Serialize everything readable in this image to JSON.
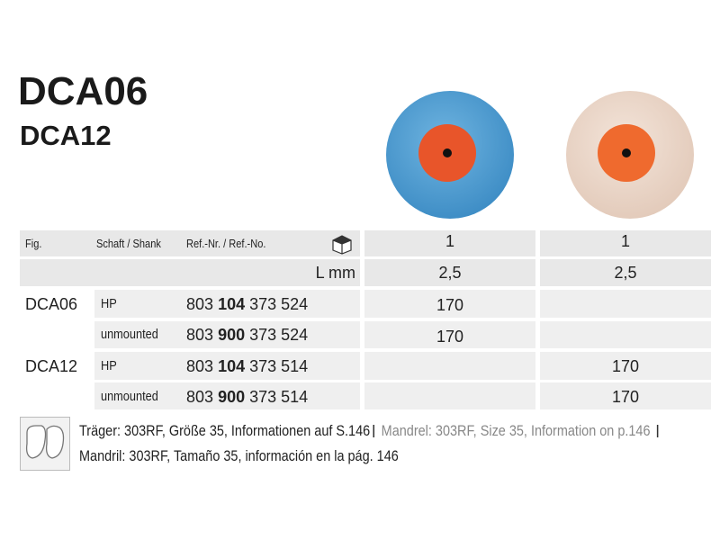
{
  "header": {
    "title": "DCA06",
    "subtitle": "DCA12"
  },
  "table": {
    "columns": [
      "Fig.",
      "Schaft / Shank",
      "Ref.-Nr. / Ref.-No."
    ],
    "figures": [
      "1",
      "1"
    ],
    "unit_label": "L mm",
    "lengths": [
      "2,5",
      "2,5"
    ],
    "rows": [
      {
        "fig": "DCA06",
        "shank": "HP",
        "ref_start": "803",
        "ref_bold": "104",
        "ref_end": "373 524",
        "qty_fig1": "170"
      },
      {
        "shank": "unmounted",
        "ref_start": "803",
        "ref_bold": "900",
        "ref_end": "373 524",
        "qty_fig1": "170"
      },
      {
        "fig": "DCA12",
        "shank": "HP",
        "ref_start": "803",
        "ref_bold": "104",
        "ref_end": "373 514",
        "qty_fig2": "170"
      },
      {
        "shank": "unmounted",
        "ref_start": "803",
        "ref_bold": "900",
        "ref_end": "373 514",
        "qty_fig2": "170"
      }
    ]
  },
  "footer": {
    "note_de": "Träger: 303RF, Größe 35, Informationen auf S.146",
    "note_en": "Mandrel: 303RF, Size 35, Information on p.146",
    "note_es": "Mandril: 303RF, Tamaño 35, información en la pág. 146"
  }
}
